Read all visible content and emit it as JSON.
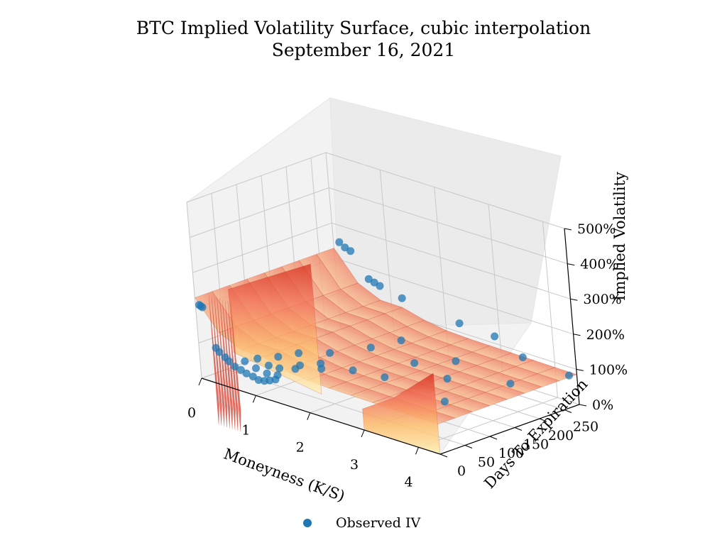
{
  "chart_data": {
    "type": "scatter",
    "subtype": "3d-surface-with-scatter",
    "title": "BTC Implied Volatility Surface, cubic interpolation",
    "subtitle": "September 16, 2021",
    "xlabel": "Moneyness (K/S)",
    "ylabel": "Days To Expiration",
    "zlabel": "Implied Volatility",
    "x_ticks": [
      "0",
      "1",
      "2",
      "3",
      "4"
    ],
    "y_ticks": [
      "0",
      "50",
      "100",
      "150",
      "200",
      "250"
    ],
    "z_ticks": [
      "0%",
      "100%",
      "200%",
      "300%",
      "400%",
      "500%"
    ],
    "xlim": [
      0,
      4.4
    ],
    "ylim": [
      0,
      280
    ],
    "zlim": [
      0,
      500
    ],
    "grid": true,
    "surface_colormap": "YlOrRd",
    "legend": {
      "position": "bottom-center",
      "entries": [
        "Observed IV"
      ]
    },
    "series": [
      {
        "name": "Observed IV",
        "color": "#1f77b4",
        "points": [
          {
            "x": 0.05,
            "y": 2,
            "z": 210
          },
          {
            "x": 0.08,
            "y": 2,
            "z": 208
          },
          {
            "x": 0.1,
            "y": 3,
            "z": 205
          },
          {
            "x": 0.3,
            "y": 2,
            "z": 100
          },
          {
            "x": 0.35,
            "y": 3,
            "z": 90
          },
          {
            "x": 0.45,
            "y": 3,
            "z": 80
          },
          {
            "x": 0.5,
            "y": 5,
            "z": 70
          },
          {
            "x": 0.6,
            "y": 5,
            "z": 60
          },
          {
            "x": 0.7,
            "y": 6,
            "z": 55
          },
          {
            "x": 0.8,
            "y": 6,
            "z": 50
          },
          {
            "x": 0.9,
            "y": 8,
            "z": 45
          },
          {
            "x": 1.0,
            "y": 8,
            "z": 40
          },
          {
            "x": 1.1,
            "y": 9,
            "z": 42
          },
          {
            "x": 1.2,
            "y": 9,
            "z": 48
          },
          {
            "x": 1.3,
            "y": 10,
            "z": 55
          },
          {
            "x": 0.7,
            "y": 15,
            "z": 75
          },
          {
            "x": 0.9,
            "y": 15,
            "z": 65
          },
          {
            "x": 1.1,
            "y": 15,
            "z": 60
          },
          {
            "x": 1.3,
            "y": 15,
            "z": 65
          },
          {
            "x": 0.8,
            "y": 30,
            "z": 80
          },
          {
            "x": 1.0,
            "y": 30,
            "z": 70
          },
          {
            "x": 1.2,
            "y": 30,
            "z": 72
          },
          {
            "x": 1.5,
            "y": 30,
            "z": 85
          },
          {
            "x": 1.0,
            "y": 50,
            "z": 85
          },
          {
            "x": 1.4,
            "y": 50,
            "z": 80
          },
          {
            "x": 1.8,
            "y": 50,
            "z": 90
          },
          {
            "x": 1.2,
            "y": 70,
            "z": 95
          },
          {
            "x": 1.6,
            "y": 70,
            "z": 85
          },
          {
            "x": 2.2,
            "y": 70,
            "z": 95
          },
          {
            "x": 1.5,
            "y": 100,
            "z": 95
          },
          {
            "x": 2.5,
            "y": 100,
            "z": 75
          },
          {
            "x": 3.6,
            "y": 100,
            "z": 60
          },
          {
            "x": 1.8,
            "y": 150,
            "z": 100
          },
          {
            "x": 2.6,
            "y": 150,
            "z": 95
          },
          {
            "x": 3.2,
            "y": 150,
            "z": 80
          },
          {
            "x": 2.0,
            "y": 190,
            "z": 110
          },
          {
            "x": 3.0,
            "y": 190,
            "z": 100
          },
          {
            "x": 4.0,
            "y": 190,
            "z": 85
          },
          {
            "x": 0.4,
            "y": 250,
            "z": 280
          },
          {
            "x": 0.5,
            "y": 250,
            "z": 270
          },
          {
            "x": 0.6,
            "y": 250,
            "z": 265
          },
          {
            "x": 0.9,
            "y": 250,
            "z": 200
          },
          {
            "x": 1.0,
            "y": 250,
            "z": 195
          },
          {
            "x": 1.1,
            "y": 250,
            "z": 190
          },
          {
            "x": 1.5,
            "y": 250,
            "z": 175
          },
          {
            "x": 2.5,
            "y": 255,
            "z": 150
          },
          {
            "x": 3.0,
            "y": 270,
            "z": 130
          },
          {
            "x": 3.5,
            "y": 270,
            "z": 95
          },
          {
            "x": 4.3,
            "y": 275,
            "z": 80
          }
        ]
      }
    ]
  }
}
